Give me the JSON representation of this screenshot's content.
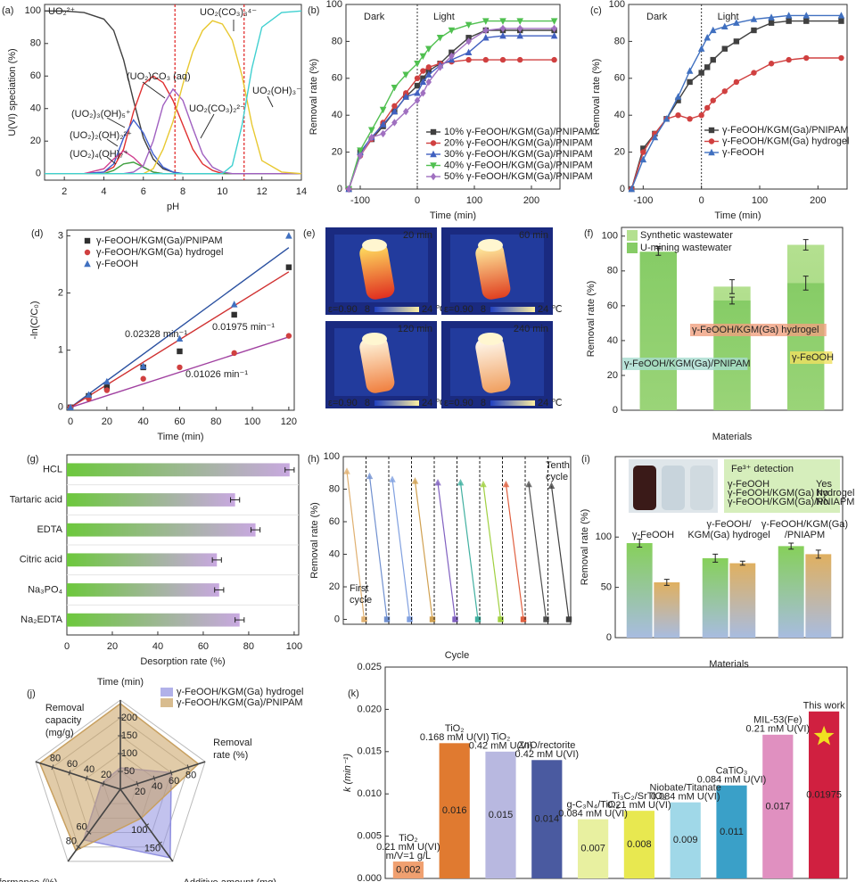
{
  "chart_data": [
    {
      "panel": "(a)",
      "type": "line",
      "xlabel": "pH",
      "ylabel": "U(VI) speciation (%)",
      "x": [
        1,
        2,
        3,
        4,
        4.5,
        5,
        5.5,
        6,
        6.5,
        7,
        7.5,
        8,
        8.5,
        9,
        9.5,
        10,
        10.5,
        11,
        11.5,
        12,
        13,
        14
      ],
      "series": [
        {
          "name": "UO₂²⁺",
          "color": "#404040",
          "values": [
            100,
            100,
            99,
            95,
            88,
            70,
            45,
            22,
            9,
            3,
            1,
            0,
            0,
            0,
            0,
            0,
            0,
            0,
            0,
            0,
            0,
            0
          ]
        },
        {
          "name": "(UO₂)CO₃ (aq)",
          "color": "#e03030",
          "values": [
            0,
            0,
            0,
            1,
            4,
            15,
            38,
            55,
            60,
            56,
            45,
            30,
            15,
            6,
            2,
            0,
            0,
            0,
            0,
            0,
            0,
            0
          ]
        },
        {
          "name": "(UO₂)₃(OH)₅⁺",
          "color": "#4060d0",
          "values": [
            0,
            0,
            0,
            1,
            6,
            22,
            33,
            25,
            12,
            4,
            1,
            0,
            0,
            0,
            0,
            0,
            0,
            0,
            0,
            0,
            0,
            0
          ]
        },
        {
          "name": "(UO₂)₂(OH)₂²⁺",
          "color": "#d04090",
          "values": [
            0,
            0,
            0,
            3,
            9,
            14,
            10,
            4,
            1,
            0,
            0,
            0,
            0,
            0,
            0,
            0,
            0,
            0,
            0,
            0,
            0,
            0
          ]
        },
        {
          "name": "(UO₂)₄(OH)₇⁺",
          "color": "#40a040",
          "values": [
            0,
            0,
            0,
            0,
            2,
            6,
            7,
            4,
            1,
            0,
            0,
            0,
            0,
            0,
            0,
            0,
            0,
            0,
            0,
            0,
            0,
            0
          ]
        },
        {
          "name": "UO₂(CO₃)₂²⁻",
          "color": "#a060c0",
          "values": [
            0,
            0,
            0,
            0,
            0,
            0,
            1,
            5,
            20,
            42,
            52,
            45,
            28,
            12,
            4,
            1,
            0,
            0,
            0,
            0,
            0,
            0
          ]
        },
        {
          "name": "UO₂(CO₃)₃⁴⁻",
          "color": "#e8c830",
          "values": [
            0,
            0,
            0,
            0,
            0,
            0,
            0,
            0,
            3,
            15,
            32,
            55,
            75,
            88,
            94,
            92,
            82,
            60,
            30,
            8,
            1,
            0
          ]
        },
        {
          "name": "UO₂(OH)₃⁻",
          "color": "#40d0d0",
          "values": [
            0,
            0,
            0,
            0,
            0,
            0,
            0,
            0,
            0,
            0,
            0,
            0,
            0,
            0,
            0,
            0,
            5,
            30,
            65,
            90,
            99,
            100
          ]
        }
      ],
      "vlines": [
        7.6,
        11.1
      ],
      "vline_color": "#e02020",
      "xlim": [
        1,
        14
      ],
      "xticks": [
        2,
        4,
        6,
        8,
        10,
        12,
        14
      ],
      "ylim": [
        -4,
        104
      ],
      "yticks": [
        0,
        20,
        40,
        60,
        80,
        100
      ]
    },
    {
      "panel": "(b)",
      "type": "line",
      "xlabel": "Time (min)",
      "ylabel": "Removal rate (%)",
      "annotations": [
        "Dark",
        "Light"
      ],
      "divider": 0,
      "markers": [
        "square",
        "circle",
        "triangle",
        "triangle-down",
        "diamond"
      ],
      "x": [
        -120,
        -100,
        -80,
        -60,
        -40,
        -20,
        0,
        10,
        20,
        40,
        60,
        90,
        120,
        150,
        180,
        240
      ],
      "series": [
        {
          "name": "10% γ-FeOOH/KGM(Ga)/PNIPAM",
          "color": "#404040",
          "values": [
            0,
            20,
            27,
            34,
            42,
            50,
            56,
            60,
            64,
            68,
            74,
            82,
            86,
            86,
            86,
            86
          ]
        },
        {
          "name": "20% γ-FeOOH/KGM(Ga)/PNIPAM",
          "color": "#d04040",
          "values": [
            0,
            18,
            27,
            36,
            45,
            52,
            60,
            64,
            66,
            68,
            69,
            70,
            70,
            70,
            70,
            70
          ]
        },
        {
          "name": "30% γ-FeOOH/KGM(Ga)/PNIPAM",
          "color": "#4060c0",
          "values": [
            0,
            20,
            28,
            35,
            42,
            50,
            52,
            58,
            62,
            67,
            70,
            74,
            82,
            83,
            83,
            83
          ]
        },
        {
          "name": "40% γ-FeOOH/KGM(Ga)/PNIPAM",
          "color": "#50c050",
          "values": [
            0,
            21,
            32,
            43,
            55,
            62,
            68,
            72,
            76,
            82,
            86,
            89,
            91,
            91,
            91,
            91
          ]
        },
        {
          "name": "50% γ-FeOOH/KGM(Ga)/PNIPAM",
          "color": "#a070c0",
          "values": [
            0,
            18,
            28,
            30,
            36,
            42,
            48,
            52,
            58,
            66,
            72,
            80,
            86,
            87,
            87,
            87
          ]
        }
      ],
      "xlim": [
        -125,
        250
      ],
      "xticks": [
        -100,
        0,
        100,
        200
      ],
      "ylim": [
        0,
        100
      ],
      "yticks": [
        0,
        20,
        40,
        60,
        80,
        100
      ]
    },
    {
      "panel": "(c)",
      "type": "line",
      "xlabel": "Time (min)",
      "ylabel": "Removal rate (%)",
      "annotations": [
        "Dark",
        "Light"
      ],
      "divider": 0,
      "markers": [
        "square",
        "circle",
        "triangle"
      ],
      "x": [
        -120,
        -100,
        -80,
        -60,
        -40,
        -20,
        0,
        10,
        20,
        40,
        60,
        90,
        120,
        150,
        180,
        240
      ],
      "series": [
        {
          "name": "γ-FeOOH/KGM(Ga)/PNIPAM",
          "color": "#404040",
          "values": [
            0,
            22,
            30,
            38,
            48,
            58,
            63,
            66,
            70,
            76,
            80,
            86,
            90,
            91,
            91,
            91
          ]
        },
        {
          "name": "γ-FeOOH/KGM(Ga) hydrogel",
          "color": "#d04040",
          "values": [
            0,
            20,
            30,
            38,
            40,
            38,
            40,
            44,
            48,
            53,
            58,
            63,
            68,
            70,
            71,
            71
          ]
        },
        {
          "name": "γ-FeOOH",
          "color": "#4070c0",
          "values": [
            0,
            16,
            28,
            38,
            50,
            64,
            76,
            82,
            86,
            88,
            90,
            92,
            93,
            94,
            94,
            94
          ]
        }
      ],
      "xlim": [
        -125,
        250
      ],
      "xticks": [
        -100,
        0,
        100,
        200
      ],
      "ylim": [
        0,
        100
      ],
      "yticks": [
        0,
        20,
        40,
        60,
        80,
        100
      ]
    },
    {
      "panel": "(d)",
      "type": "scatter",
      "xlabel": "Time (min)",
      "ylabel": "-ln(C/C₀)",
      "markers": [
        "square",
        "circle",
        "triangle"
      ],
      "x": [
        0,
        10,
        20,
        40,
        60,
        90,
        120
      ],
      "series": [
        {
          "name": "γ-FeOOH/KGM(Ga)/PNIPAM",
          "color": "#303030",
          "values": [
            0,
            0.2,
            0.35,
            0.7,
            0.98,
            1.62,
            2.45
          ]
        },
        {
          "name": "γ-FeOOH/KGM(Ga) hydrogel",
          "color": "#d04040",
          "values": [
            0,
            0.15,
            0.3,
            0.5,
            0.7,
            0.95,
            1.25
          ]
        },
        {
          "name": "γ-FeOOH",
          "color": "#4070c0",
          "values": [
            0,
            0.22,
            0.45,
            0.72,
            1.2,
            1.8,
            3.0
          ]
        }
      ],
      "fits": [
        {
          "slope": 0.02328,
          "label": "0.02328 min⁻¹",
          "color": "#2a50a0"
        },
        {
          "slope": 0.01975,
          "label": "0.01975 min⁻¹",
          "color": "#d03030"
        },
        {
          "slope": 0.01026,
          "label": "0.01026 min⁻¹",
          "color": "#a040a0"
        }
      ],
      "xlim": [
        -2,
        123
      ],
      "xticks": [
        0,
        20,
        40,
        60,
        80,
        100,
        120
      ],
      "ylim": [
        -0.05,
        3.1
      ],
      "yticks": [
        0,
        1,
        2,
        3
      ]
    },
    {
      "panel": "(e)",
      "type": "image",
      "images": [
        "20 min",
        "60 min",
        "120 min",
        "240 min"
      ],
      "emissivity": "ε=0.90",
      "scale_min": "8",
      "scale_max": "24 ℃"
    },
    {
      "panel": "(f)",
      "type": "bar",
      "xlabel": "Materials",
      "ylabel": "Removal rate (%)",
      "overlap": true,
      "legend": "upper left",
      "categories": [
        "γ-FeOOH/KGM(Ga)/PNIPAM",
        "γ-FeOOH/KGM(Ga) hydrogel",
        "γ-FeOOH"
      ],
      "series": [
        {
          "name": "Synthetic wastewater",
          "color": "#b4e090",
          "values": [
            91,
            71,
            95
          ],
          "errors": [
            3,
            4,
            3
          ]
        },
        {
          "name": "U-mining wastewater",
          "color": "#86cc66",
          "values": [
            91,
            63,
            73
          ],
          "errors": [
            2,
            2,
            4
          ]
        }
      ],
      "ylim": [
        0,
        105
      ],
      "yticks": [
        0,
        20,
        40,
        60,
        80,
        100
      ]
    },
    {
      "panel": "(g)",
      "type": "hbar",
      "xlabel": "Desorption rate (%)",
      "categories": [
        "HCL",
        "Tartaric acid",
        "EDTA",
        "Citric acid",
        "Na₃PO₄",
        "Na₂EDTA"
      ],
      "values": [
        98,
        74,
        83,
        66,
        67,
        76
      ],
      "errors": [
        2,
        2,
        2,
        2,
        2,
        2
      ],
      "colors": [
        "#6cc83c",
        "#c8a8e0"
      ],
      "xlim": [
        0,
        102
      ],
      "xticks": [
        0,
        20,
        40,
        60,
        80,
        100
      ]
    },
    {
      "panel": "(h)",
      "type": "cycle",
      "xlabel": "Cycle",
      "ylabel": "Removal rate (%)",
      "values": [
        91,
        88,
        86,
        85,
        84,
        84,
        83,
        83,
        83,
        82
      ],
      "end_values": [
        0,
        0,
        0,
        0,
        0,
        0,
        0,
        0,
        0,
        0
      ],
      "colors": [
        "#e0b070",
        "#7090d0",
        "#80a0e0",
        "#d0a050",
        "#8060c0",
        "#40b0a0",
        "#a0d040",
        "#e06040",
        "#505050",
        "#404040"
      ],
      "first_label": [
        "First",
        "cycle"
      ],
      "last_label": [
        "Tenth",
        "cycle"
      ],
      "ylim": [
        -3,
        100
      ],
      "yticks": [
        0,
        20,
        40,
        60,
        80,
        100
      ]
    },
    {
      "panel": "(i)",
      "type": "bar",
      "xlabel": "Materials",
      "ylabel": "Removal rate (%)",
      "categories": [
        [
          "γ-FeOOH"
        ],
        [
          "γ-FeOOH/",
          "KGM(Ga) hydrogel"
        ],
        [
          "γ-FeOOH/KGM(Ga)",
          "/PNIAPM"
        ]
      ],
      "series": [
        {
          "color": "#86d05a",
          "values": [
            94,
            79,
            91
          ],
          "errors": [
            4,
            4,
            3
          ]
        },
        {
          "color": "#e0b060",
          "values": [
            55,
            74,
            83
          ],
          "errors": [
            3,
            2,
            4
          ]
        }
      ],
      "inset": {
        "title": "Fe³⁺ detection",
        "rows": [
          [
            "γ-FeOOH",
            "Yes"
          ],
          [
            "γ-FeOOH/KGM(Ga) hydrogel",
            "No"
          ],
          [
            "γ-FeOOH/KGM(Ga)/PNIAPM",
            "No"
          ]
        ]
      },
      "ylim": [
        0,
        180
      ],
      "yticks": [
        0,
        50,
        100
      ]
    },
    {
      "panel": "(j)",
      "type": "radar",
      "axes": [
        {
          "label": [
            "Time (min)"
          ],
          "lim": [
            0,
            250
          ],
          "ticks": [
            50,
            100,
            150,
            200
          ]
        },
        {
          "label": [
            "Removal",
            "rate (%)"
          ],
          "lim": [
            0,
            100
          ],
          "ticks": [
            20,
            40,
            60,
            80
          ]
        },
        {
          "label": [
            "Additive amount (mg)"
          ],
          "lim": [
            0,
            200
          ],
          "ticks": [
            100,
            150
          ]
        },
        {
          "label": [
            "Cycle performance (%)"
          ],
          "lim": [
            0,
            100
          ],
          "ticks": [
            60,
            80
          ]
        },
        {
          "label": [
            "Removal",
            "capacity",
            "(mg/g)"
          ],
          "lim": [
            0,
            100
          ],
          "ticks": [
            20,
            40,
            60,
            80
          ]
        }
      ],
      "series": [
        {
          "name": "γ-FeOOH/KGM(Ga) hydrogel",
          "color": "#9090e0",
          "values": [
            60,
            60,
            190,
            70,
            22
          ]
        },
        {
          "name": "γ-FeOOH/KGM(Ga)/PNIPAM",
          "color": "#c8a060",
          "values": [
            240,
            92,
            80,
            85,
            95
          ]
        }
      ]
    },
    {
      "panel": "(k)",
      "type": "bar",
      "ylabel": "k (min⁻¹)",
      "categories": [
        [
          "TiO₂",
          "0.21 mM U(VI)",
          "m/V=1 g/L"
        ],
        [
          "TiO₂",
          "0.168 mM U(VI)"
        ],
        [
          "TiO₂",
          "0.42 mM U(VI)"
        ],
        [
          "ZnO/rectorite",
          "0.42 mM U(VI)"
        ],
        [
          "g-C₃N₄/TiO₂",
          "0.084 mM U(VI)"
        ],
        [
          "Ti₃C₂/SrTiO₃",
          "0.21 mM U(VI)"
        ],
        [
          "Niobate/Titanate",
          "0.084 mM U(VI)"
        ],
        [
          "CaTiO₃",
          "0.084 mM U(VI)"
        ],
        [
          "MIL-53(Fe)",
          "0.21 mM U(VI)"
        ],
        [
          "This work"
        ]
      ],
      "values": [
        0.002,
        0.016,
        0.015,
        0.014,
        0.007,
        0.008,
        0.009,
        0.011,
        0.017,
        0.01975
      ],
      "colors": [
        "#f0a070",
        "#e07a30",
        "#b8b8e0",
        "#4a5aa0",
        "#e8f0a0",
        "#e8e850",
        "#a0d8e8",
        "#3aa0c8",
        "#e090c0",
        "#d02040"
      ],
      "value_label_color": "#3050c0",
      "ylim": [
        0,
        0.025
      ],
      "yticks": [
        {
          "value": 0,
          "label": "0.000"
        },
        {
          "value": 0.005,
          "label": "0.005"
        },
        {
          "value": 0.01,
          "label": "0.010"
        },
        {
          "value": 0.015,
          "label": "0.015"
        },
        {
          "value": 0.02,
          "label": "0.020"
        },
        {
          "value": 0.025,
          "label": "0.025"
        }
      ]
    }
  ]
}
